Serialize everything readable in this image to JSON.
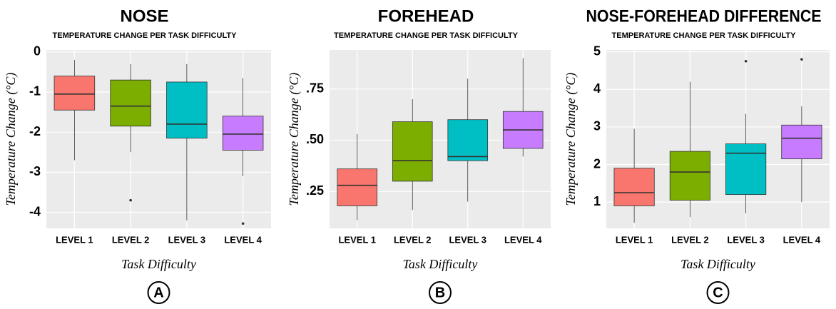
{
  "chart_data": [
    {
      "type": "box",
      "title": "NOSE",
      "subtitle": "TEMPERATURE CHANGE PER TASK DIFFICULTY",
      "xlabel": "Task Difficulty",
      "ylabel": "Temperature Change (°C)",
      "panel_label": "A",
      "categories": [
        "LEVEL 1",
        "LEVEL 2",
        "LEVEL 3",
        "LEVEL 4"
      ],
      "colors": [
        "#f8766d",
        "#7cae00",
        "#00bfc4",
        "#c77cff"
      ],
      "boxes": [
        {
          "min": -2.7,
          "q1": -1.45,
          "median": -1.05,
          "q3": -0.6,
          "max": -0.2
        },
        {
          "min": -2.5,
          "q1": -1.85,
          "median": -1.35,
          "q3": -0.7,
          "max": -0.3,
          "outliers": [
            -3.7
          ]
        },
        {
          "min": -4.2,
          "q1": -2.15,
          "median": -1.8,
          "q3": -0.75,
          "max": -0.3
        },
        {
          "min": -3.1,
          "q1": -2.45,
          "median": -2.05,
          "q3": -1.6,
          "max": -0.65,
          "outliers": [
            -4.28
          ]
        }
      ],
      "ylim": [
        -4.4,
        0.05
      ],
      "yticks": [
        0,
        -1,
        -2,
        -3,
        -4
      ],
      "grid": true
    },
    {
      "type": "box",
      "title": "FOREHEAD",
      "subtitle": "TEMPERATURE CHANGE PER TASK DIFFICULTY",
      "xlabel": "Task Difficulty",
      "ylabel": "Temperature Change (°C)",
      "panel_label": "B",
      "categories": [
        "LEVEL 1",
        "LEVEL 2",
        "LEVEL 3",
        "LEVEL 4"
      ],
      "colors": [
        "#f8766d",
        "#7cae00",
        "#00bfc4",
        "#c77cff"
      ],
      "boxes": [
        {
          "min": 0.11,
          "q1": 0.18,
          "median": 0.28,
          "q3": 0.36,
          "max": 0.53
        },
        {
          "min": 0.16,
          "q1": 0.3,
          "median": 0.4,
          "q3": 0.59,
          "max": 0.7
        },
        {
          "min": 0.2,
          "q1": 0.4,
          "median": 0.42,
          "q3": 0.6,
          "max": 0.8
        },
        {
          "min": 0.42,
          "q1": 0.46,
          "median": 0.55,
          "q3": 0.64,
          "max": 0.9
        }
      ],
      "ylim": [
        0.07,
        0.94
      ],
      "yticks": [
        {
          "value": 0.25,
          "label": ".25"
        },
        {
          "value": 0.5,
          "label": ".50"
        },
        {
          "value": 0.75,
          "label": ".75"
        }
      ],
      "grid": true
    },
    {
      "type": "box",
      "title": "NOSE-FOREHEAD DIFFERENCE",
      "subtitle": "TEMPERATURE CHANGE PER TASK DIFFICULTY",
      "xlabel": "Task Difficulty",
      "ylabel": "Temperature Change (°C)",
      "panel_label": "C",
      "categories": [
        "LEVEL 1",
        "LEVEL 2",
        "LEVEL 3",
        "LEVEL 4"
      ],
      "colors": [
        "#f8766d",
        "#7cae00",
        "#00bfc4",
        "#c77cff"
      ],
      "boxes": [
        {
          "min": 0.45,
          "q1": 0.9,
          "median": 1.25,
          "q3": 1.9,
          "max": 2.95
        },
        {
          "min": 0.6,
          "q1": 1.05,
          "median": 1.8,
          "q3": 2.35,
          "max": 4.2
        },
        {
          "min": 0.7,
          "q1": 1.2,
          "median": 2.3,
          "q3": 2.55,
          "max": 3.35,
          "outliers": [
            4.75
          ]
        },
        {
          "min": 1.0,
          "q1": 2.15,
          "median": 2.7,
          "q3": 3.05,
          "max": 3.55,
          "outliers": [
            4.8
          ]
        }
      ],
      "ylim": [
        0.3,
        5.05
      ],
      "yticks": [
        1,
        2,
        3,
        4,
        5
      ],
      "grid": true
    }
  ]
}
